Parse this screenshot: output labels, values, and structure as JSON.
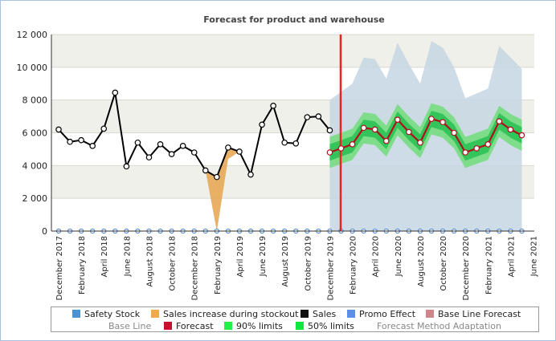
{
  "chart_data": {
    "type": "line",
    "title": "Forecast for product and warehouse",
    "ylim": [
      0,
      12000
    ],
    "y_ticks": [
      "0",
      "2 000",
      "4 000",
      "6 000",
      "8 000",
      "10 000",
      "12 000"
    ],
    "y_tick_values": [
      0,
      2000,
      4000,
      6000,
      8000,
      10000,
      12000
    ],
    "x_labels": [
      "December 2017",
      "February 2018",
      "April 2018",
      "June 2018",
      "August 2018",
      "October 2018",
      "December 2018",
      "February 2019",
      "April 2019",
      "June 2019",
      "August 2019",
      "October 2019",
      "December 2019",
      "February 2020",
      "April 2020",
      "June 2020",
      "August 2020",
      "October 2020",
      "December 2020",
      "February 2021",
      "April 2021",
      "June 2021"
    ],
    "forecast_start": "December 2019",
    "series": [
      {
        "name": "Sales",
        "color": "#000000",
        "values": [
          6200,
          5450,
          5550,
          5200,
          6250,
          8450,
          3950,
          5400,
          4500,
          5300,
          4700,
          5200,
          4800,
          3700,
          3300,
          5100,
          4850,
          3450,
          6500,
          7650,
          5400,
          5350,
          6950,
          7000,
          6150
        ]
      },
      {
        "name": "Sales increase during stockout",
        "color": "#e6a957",
        "values": [
          null,
          null,
          null,
          null,
          null,
          null,
          null,
          null,
          null,
          null,
          null,
          null,
          4800,
          3700,
          0,
          4400,
          4850,
          null,
          null,
          null,
          null,
          null,
          null,
          null,
          null
        ]
      },
      {
        "name": "Forecast",
        "color": "#cc1e2e",
        "values": [
          4800,
          5050,
          5300,
          6300,
          6200,
          5500,
          6800,
          6050,
          5400,
          6850,
          6650,
          6000,
          4800,
          5050,
          5300,
          6700,
          6200,
          5850
        ]
      },
      {
        "name": "Base Line",
        "color": "#b8cbdb",
        "values": [
          8000,
          8500,
          9000,
          10600,
          10500,
          9300,
          11500,
          10200,
          9000,
          11600,
          11200,
          10000,
          8100,
          8400,
          8700,
          11300,
          10600,
          9900
        ]
      }
    ],
    "band_90_halfwidth": 950,
    "band_50_halfwidth": 500
  },
  "legend": {
    "row1": [
      {
        "label": "Safety Stock",
        "color": "#4a94d2"
      },
      {
        "label": "Sales increase during stockout",
        "color": "#f0a94e"
      },
      {
        "label": "Sales",
        "color": "#111111"
      },
      {
        "label": "Promo Effect",
        "color": "#5c8fe8"
      },
      {
        "label": "Base Line Forecast",
        "color": "#d0848c"
      }
    ],
    "row2": [
      {
        "label": "Base Line"
      },
      {
        "label": "Forecast",
        "color": "#c8102e"
      },
      {
        "label": "90% limits",
        "color": "#22f048"
      },
      {
        "label": "50% limits",
        "color": "#10e840"
      },
      {
        "label": "Forecast Method Adaptation"
      }
    ]
  },
  "colors": {
    "forecast_divider": "#ee2222",
    "band_90": "#7fdc8a",
    "band_50": "#33c45a",
    "grid_band": "#f0f0ea",
    "zero_marker": "#4a84d8"
  }
}
